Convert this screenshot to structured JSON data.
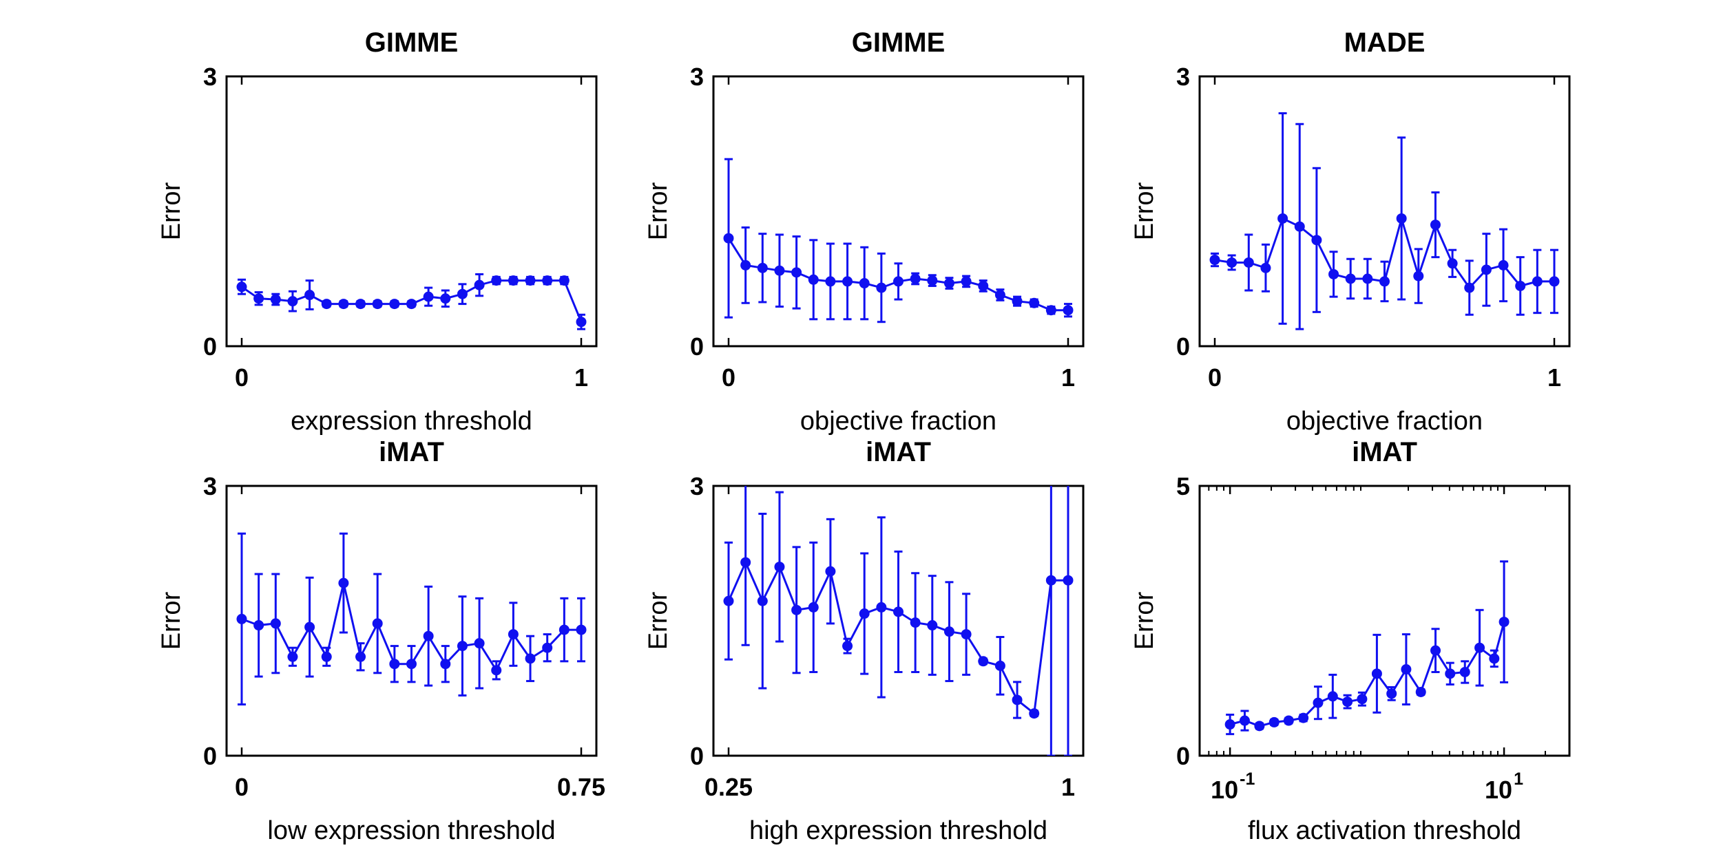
{
  "chart_data": [
    {
      "type": "line",
      "title": "GIMME",
      "xlabel": "expression threshold",
      "ylabel": "Error",
      "xlim": [
        0,
        1
      ],
      "ylim": [
        0,
        3
      ],
      "xticks": [
        {
          "value": 0,
          "label": "0"
        },
        {
          "value": 1,
          "label": "1"
        }
      ],
      "yticks": [
        {
          "value": 0,
          "label": "0"
        },
        {
          "value": 3,
          "label": "3"
        }
      ],
      "x": [
        0,
        0.05,
        0.1,
        0.15,
        0.2,
        0.25,
        0.3,
        0.35,
        0.4,
        0.45,
        0.5,
        0.55,
        0.6,
        0.65,
        0.7,
        0.75,
        0.8,
        0.85,
        0.9,
        0.95,
        1.0
      ],
      "y": [
        0.66,
        0.53,
        0.52,
        0.5,
        0.57,
        0.47,
        0.47,
        0.47,
        0.47,
        0.47,
        0.47,
        0.55,
        0.53,
        0.58,
        0.68,
        0.73,
        0.73,
        0.73,
        0.73,
        0.73,
        0.27
      ],
      "err": [
        0.08,
        0.07,
        0.06,
        0.11,
        0.16,
        0.03,
        0.03,
        0.03,
        0.03,
        0.03,
        0.03,
        0.1,
        0.09,
        0.11,
        0.12,
        0.04,
        0.04,
        0.04,
        0.04,
        0.04,
        0.08
      ]
    },
    {
      "type": "line",
      "title": "GIMME",
      "xlabel": "objective fraction",
      "ylabel": "Error",
      "xlim": [
        0,
        1
      ],
      "ylim": [
        0,
        3
      ],
      "xticks": [
        {
          "value": 0,
          "label": "0"
        },
        {
          "value": 1,
          "label": "1"
        }
      ],
      "yticks": [
        {
          "value": 0,
          "label": "0"
        },
        {
          "value": 3,
          "label": "3"
        }
      ],
      "x": [
        0,
        0.05,
        0.1,
        0.15,
        0.2,
        0.25,
        0.3,
        0.35,
        0.4,
        0.45,
        0.5,
        0.55,
        0.6,
        0.65,
        0.7,
        0.75,
        0.8,
        0.85,
        0.9,
        0.95,
        1.0
      ],
      "y": [
        1.2,
        0.9,
        0.87,
        0.84,
        0.82,
        0.74,
        0.72,
        0.72,
        0.7,
        0.65,
        0.72,
        0.75,
        0.73,
        0.7,
        0.72,
        0.67,
        0.57,
        0.5,
        0.48,
        0.4,
        0.4
      ],
      "err": [
        0.88,
        0.42,
        0.38,
        0.4,
        0.4,
        0.44,
        0.42,
        0.42,
        0.4,
        0.38,
        0.2,
        0.06,
        0.06,
        0.06,
        0.06,
        0.06,
        0.06,
        0.05,
        0.04,
        0.04,
        0.07
      ]
    },
    {
      "type": "line",
      "title": "MADE",
      "xlabel": "objective fraction",
      "ylabel": "Error",
      "xlim": [
        0,
        1
      ],
      "ylim": [
        0,
        3
      ],
      "xticks": [
        {
          "value": 0,
          "label": "0"
        },
        {
          "value": 1,
          "label": "1"
        }
      ],
      "yticks": [
        {
          "value": 0,
          "label": "0"
        },
        {
          "value": 3,
          "label": "3"
        }
      ],
      "x": [
        0,
        0.05,
        0.1,
        0.15,
        0.2,
        0.25,
        0.3,
        0.35,
        0.4,
        0.45,
        0.5,
        0.55,
        0.6,
        0.65,
        0.7,
        0.75,
        0.8,
        0.85,
        0.9,
        0.95,
        1.0
      ],
      "y": [
        0.96,
        0.93,
        0.93,
        0.87,
        1.42,
        1.33,
        1.18,
        0.8,
        0.75,
        0.75,
        0.72,
        1.42,
        0.78,
        1.35,
        0.92,
        0.65,
        0.85,
        0.9,
        0.67,
        0.72,
        0.72
      ],
      "err": [
        0.07,
        0.08,
        0.31,
        0.26,
        1.17,
        1.14,
        0.8,
        0.25,
        0.22,
        0.22,
        0.22,
        0.9,
        0.3,
        0.36,
        0.15,
        0.3,
        0.4,
        0.4,
        0.32,
        0.35,
        0.35
      ]
    },
    {
      "type": "line",
      "title": "iMAT",
      "xlabel": "low expression threshold",
      "ylabel": "Error",
      "xlim": [
        0,
        0.75
      ],
      "ylim": [
        0,
        3
      ],
      "xticks": [
        {
          "value": 0,
          "label": "0"
        },
        {
          "value": 0.75,
          "label": "0.75"
        }
      ],
      "yticks": [
        {
          "value": 0,
          "label": "0"
        },
        {
          "value": 3,
          "label": "3"
        }
      ],
      "x": [
        0,
        0.0375,
        0.075,
        0.1125,
        0.15,
        0.1875,
        0.225,
        0.2625,
        0.3,
        0.3375,
        0.375,
        0.4125,
        0.45,
        0.4875,
        0.525,
        0.5625,
        0.6,
        0.6375,
        0.675,
        0.7125,
        0.75
      ],
      "y": [
        1.52,
        1.45,
        1.47,
        1.1,
        1.43,
        1.1,
        1.92,
        1.1,
        1.47,
        1.02,
        1.02,
        1.33,
        1.02,
        1.22,
        1.25,
        0.95,
        1.35,
        1.08,
        1.2,
        1.4,
        1.4
      ],
      "err": [
        0.95,
        0.57,
        0.55,
        0.1,
        0.55,
        0.1,
        0.55,
        0.15,
        0.55,
        0.2,
        0.2,
        0.55,
        0.2,
        0.55,
        0.5,
        0.1,
        0.35,
        0.25,
        0.15,
        0.35,
        0.35
      ]
    },
    {
      "type": "line",
      "title": "iMAT",
      "xlabel": "high expression threshold",
      "ylabel": "Error",
      "xlim": [
        0.25,
        1
      ],
      "ylim": [
        0,
        3
      ],
      "xticks": [
        {
          "value": 0.25,
          "label": "0.25"
        },
        {
          "value": 1,
          "label": "1"
        }
      ],
      "yticks": [
        {
          "value": 0,
          "label": "0"
        },
        {
          "value": 3,
          "label": "3"
        }
      ],
      "x": [
        0.25,
        0.2875,
        0.325,
        0.3625,
        0.4,
        0.4375,
        0.475,
        0.5125,
        0.55,
        0.5875,
        0.625,
        0.6625,
        0.7,
        0.7375,
        0.775,
        0.8125,
        0.85,
        0.8875,
        0.925,
        0.9625,
        1.0
      ],
      "y": [
        1.72,
        2.15,
        1.72,
        2.1,
        1.62,
        1.65,
        2.05,
        1.22,
        1.58,
        1.65,
        1.6,
        1.48,
        1.45,
        1.38,
        1.35,
        1.05,
        1.0,
        0.62,
        0.47,
        1.95,
        1.95
      ],
      "err": [
        0.65,
        0.92,
        0.97,
        0.83,
        0.7,
        0.72,
        0.58,
        0.08,
        0.67,
        1.0,
        0.67,
        0.55,
        0.55,
        0.55,
        0.45,
        0.03,
        0.32,
        0.2,
        0.03,
        1.95,
        1.95
      ]
    },
    {
      "type": "line",
      "title": "iMAT",
      "xlabel": "flux activation threshold",
      "ylabel": "Error",
      "xscale": "log",
      "xlim": [
        0.06,
        30
      ],
      "ylim": [
        0,
        5
      ],
      "xticks": [
        {
          "value": 0.1,
          "base": "10",
          "exponent": "-1"
        },
        {
          "value": 10,
          "base": "10",
          "exponent": "1"
        }
      ],
      "yticks": [
        {
          "value": 0,
          "label": "0"
        },
        {
          "value": 5,
          "label": "5"
        }
      ],
      "x": [
        0.1,
        0.128,
        0.164,
        0.21,
        0.268,
        0.343,
        0.439,
        0.562,
        0.719,
        0.92,
        1.18,
        1.51,
        1.93,
        2.47,
        3.16,
        4.04,
        5.18,
        6.63,
        8.48,
        10.0
      ],
      "y": [
        0.58,
        0.65,
        0.55,
        0.62,
        0.65,
        0.7,
        0.98,
        1.1,
        1.0,
        1.05,
        1.52,
        1.15,
        1.6,
        1.18,
        1.95,
        1.52,
        1.55,
        2.0,
        1.8,
        2.48
      ],
      "err": [
        0.18,
        0.18,
        0.05,
        0.05,
        0.05,
        0.06,
        0.3,
        0.4,
        0.12,
        0.12,
        0.72,
        0.12,
        0.65,
        0.05,
        0.4,
        0.2,
        0.2,
        0.7,
        0.15,
        1.12
      ]
    }
  ]
}
